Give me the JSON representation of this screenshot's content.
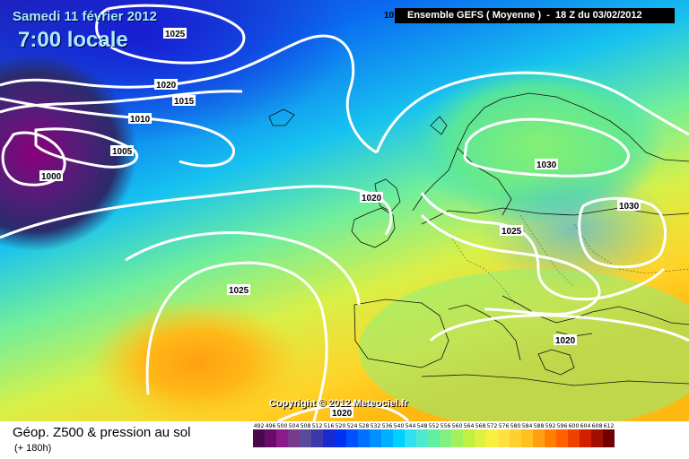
{
  "header": {
    "date": "Samedi 11 février 2012",
    "time": "7:00 locale",
    "model": "Ensemble GEFS ( Moyenne )  -  18 Z du 03/02/2012"
  },
  "copyright": "Copyright © 2012 Meteociel.fr",
  "footer": {
    "title": "Géop. Z500 & pression au sol",
    "subtitle": "(+ 180h)"
  },
  "isobars": [
    {
      "label": "1025",
      "feature": "north-atlantic-high"
    },
    {
      "label": "1020",
      "feature": "north-atlantic-ridge"
    },
    {
      "label": "1015",
      "feature": "north-atlantic-ridge"
    },
    {
      "label": "1010",
      "feature": "low-outer"
    },
    {
      "label": "1005",
      "feature": "low"
    },
    {
      "label": "1000",
      "feature": "low-center"
    },
    {
      "label": "1020",
      "feature": "western-europe"
    },
    {
      "label": "1030",
      "feature": "scandinavian-high"
    },
    {
      "label": "1030",
      "feature": "russian-high"
    },
    {
      "label": "1025",
      "feature": "central-europe"
    },
    {
      "label": "1025",
      "feature": "azores-high"
    },
    {
      "label": "1020",
      "feature": "balkans"
    },
    {
      "label": "1020",
      "feature": "iberia-south"
    },
    {
      "label": "10",
      "feature": "top-edge-partial"
    }
  ],
  "legend": {
    "values": [
      "492",
      "496",
      "500",
      "504",
      "508",
      "512",
      "516",
      "520",
      "524",
      "528",
      "532",
      "536",
      "540",
      "544",
      "548",
      "552",
      "556",
      "560",
      "564",
      "568",
      "572",
      "576",
      "580",
      "584",
      "588",
      "592",
      "596",
      "600",
      "604",
      "608",
      "612"
    ],
    "colors": [
      "#4a0a4a",
      "#6a0a6a",
      "#8b1a8b",
      "#7a3a8a",
      "#5a4a9a",
      "#3a3aaa",
      "#1a2ad0",
      "#0030f0",
      "#0050ff",
      "#0070ff",
      "#0090ff",
      "#00b0ff",
      "#00d0ff",
      "#30e0f0",
      "#50e8d0",
      "#60f0a0",
      "#80f080",
      "#a0f060",
      "#c0f040",
      "#e0f040",
      "#f8f040",
      "#ffe040",
      "#ffd030",
      "#ffc020",
      "#ffa010",
      "#ff8000",
      "#ff6000",
      "#f04000",
      "#d02000",
      "#a01000",
      "#700000"
    ]
  }
}
